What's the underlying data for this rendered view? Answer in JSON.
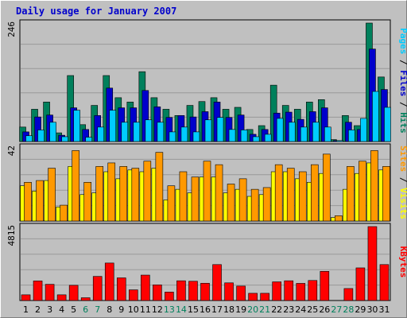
{
  "chart_data": {
    "type": "bar",
    "title": "Daily usage for January 2007",
    "categories": [
      "1",
      "2",
      "3",
      "4",
      "5",
      "6",
      "7",
      "8",
      "9",
      "10",
      "11",
      "12",
      "13",
      "14",
      "15",
      "16",
      "17",
      "18",
      "19",
      "20",
      "21",
      "22",
      "23",
      "24",
      "25",
      "26",
      "27",
      "28",
      "29",
      "30",
      "31"
    ],
    "weekend_days": [
      "6",
      "7",
      "13",
      "14",
      "20",
      "21",
      "27",
      "28"
    ],
    "colors": {
      "hits": "#00805c",
      "files": "#0000cc",
      "pages": "#00ccff",
      "visits": "#ffff00",
      "sites": "#ff9900",
      "kbytes": "#ff0000",
      "plot_bg": "#c0c0c0",
      "frame": "#000000",
      "weekday_label": "#000000",
      "weekend_label": "#00805c"
    },
    "panels": [
      {
        "label_parts": [
          {
            "text": "Pages",
            "color": "#00ccff"
          },
          {
            "text": " / ",
            "color": "#000000"
          },
          {
            "text": "Files",
            "color": "#0000cc"
          },
          {
            "text": " / ",
            "color": "#000000"
          },
          {
            "text": "Hits",
            "color": "#00805c"
          }
        ],
        "max_label": "246",
        "max": 246,
        "series": [
          {
            "name": "Hits",
            "color": "#00805c",
            "values": [
              30,
              67,
              82,
              18,
              137,
              35,
              75,
              137,
              91,
              82,
              145,
              91,
              67,
              54,
              75,
              83,
              91,
              67,
              71,
              25,
              33,
              117,
              75,
              67,
              82,
              87,
              4,
              54,
              33,
              246,
              134
            ]
          },
          {
            "name": "Files",
            "color": "#0000cc",
            "values": [
              20,
              51,
              55,
              13,
              70,
              25,
              54,
              111,
              70,
              70,
              106,
              72,
              50,
              54,
              51,
              62,
              82,
              50,
              55,
              15,
              25,
              59,
              61,
              46,
              62,
              70,
              2,
              40,
              25,
              192,
              108
            ]
          },
          {
            "name": "Pages",
            "color": "#00ccff",
            "values": [
              12,
              24,
              40,
              10,
              65,
              9,
              30,
              65,
              40,
              40,
              45,
              40,
              20,
              30,
              20,
              45,
              50,
              25,
              24,
              10,
              15,
              48,
              40,
              30,
              40,
              30,
              2,
              24,
              48,
              104,
              71
            ]
          }
        ]
      },
      {
        "label_parts": [
          {
            "text": "Sites",
            "color": "#ff9900"
          },
          {
            "text": " / ",
            "color": "#000000"
          },
          {
            "text": "Visits",
            "color": "#ffff00"
          }
        ],
        "max_label": "42",
        "max": 42,
        "series": [
          {
            "name": "Visits",
            "color": "#ffff00",
            "values": [
              20,
              17,
              23,
              8,
              31,
              15,
              16,
              28,
              24,
              29,
              28,
              30,
              12,
              18,
              16,
              25,
              25,
              16,
              18,
              14,
              15,
              28,
              28,
              24,
              22,
              27,
              2,
              18,
              27,
              33,
              29
            ]
          },
          {
            "name": "Sites",
            "color": "#ff9900",
            "values": [
              22,
              23,
              30,
              9,
              40,
              22,
              31,
              33,
              31,
              30,
              34,
              39,
              20,
              28,
              25,
              34,
              32,
              21,
              24,
              18,
              19,
              32,
              30,
              28,
              32,
              38,
              3,
              31,
              34,
              40,
              31
            ]
          }
        ]
      },
      {
        "label_parts": [
          {
            "text": "KBytes",
            "color": "#ff0000"
          }
        ],
        "max_label": "4815",
        "max": 4815,
        "series": [
          {
            "name": "KBytes",
            "color": "#ff0000",
            "values": [
              370,
              1275,
              1055,
              370,
              990,
              180,
              1570,
              2440,
              1475,
              695,
              1655,
              1020,
              550,
              1285,
              1255,
              1125,
              2340,
              1150,
              940,
              470,
              470,
              1215,
              1285,
              1115,
              1305,
              1900,
              0,
              780,
              2125,
              4815,
              2340
            ]
          }
        ]
      }
    ]
  }
}
